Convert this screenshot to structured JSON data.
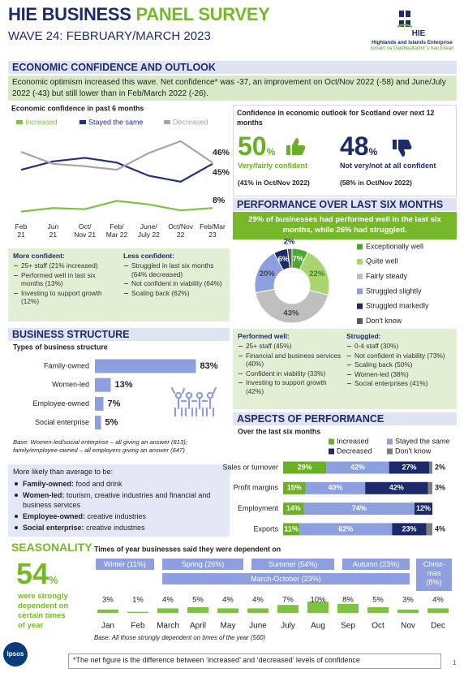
{
  "header": {
    "title_a": "HIE BUSINESS",
    "title_b": "PANEL SURVEY",
    "subtitle": "WAVE 24: FEBRUARY/MARCH 2023",
    "logo": {
      "mark": "HIE",
      "name": "Highlands and Islands Enterprise",
      "gaelic": "Iomairt na Gàidhealtachd 's nan Eilean"
    }
  },
  "economic": {
    "heading": "ECONOMIC CONFIDENCE AND OUTLOOK",
    "intro": "Economic optimism increased this wave. Net confidence* was -37, an improvement on Oct/Nov 2022 (-58) and June/July 2022 (-43) but still lower than in Feb/March 2022 (-26).",
    "outlook": {
      "title": "Confidence in economic outlook for Scotland over next 12 months",
      "confident": {
        "figure": "50",
        "unit": "%",
        "label": "Very/fairly confident",
        "comparison": "(41% in Oct/Nov 2022)"
      },
      "not_confident": {
        "figure": "48",
        "unit": "%",
        "label": "Not very/not at all confident",
        "comparison": "(58% in Oct/Nov 2022)"
      }
    },
    "more_confident": {
      "title": "More confident:",
      "items": [
        "25+ staff (21% increased)",
        "Performed well in last six months (13%)",
        "Investing to support growth (12%)"
      ]
    },
    "less_confident": {
      "title": "Less confident:",
      "items": [
        "Struggled in last six months (64% decreased)",
        "Not confident in viability (64%)",
        "Scaling back (62%)"
      ]
    }
  },
  "performance": {
    "heading": "PERFORMANCE OVER LAST SIX MONTHS",
    "banner": "29% of businesses had performed well in the last six months, while 26% had struggled.",
    "performed_well": {
      "title": "Performed well:",
      "items": [
        "25+ staff (45%)",
        "Financial and business services (40%)",
        "Confident in viability (33%)",
        "Investing to support growth (42%)"
      ]
    },
    "struggled": {
      "title": "Struggled:",
      "items": [
        "0-4 staff (30%)",
        "Not confident in viability (73%)",
        "Scaling back (50%)",
        "Women-led (38%)",
        "Social enterprises (41%)"
      ]
    }
  },
  "structure": {
    "heading": "BUSINESS STRUCTURE",
    "more_likely": {
      "title": "More likely than average to be:",
      "items": [
        {
          "label": "Family-owned:",
          "text": " food and drink"
        },
        {
          "label": "Women-led:",
          "text": " tourism, creative industries and financial and business services"
        },
        {
          "label": "Employee-owned:",
          "text": " creative industries"
        },
        {
          "label": "Social enterprise:",
          "text": " creative industries"
        }
      ]
    }
  },
  "aspects": {
    "heading": "ASPECTS OF PERFORMANCE"
  },
  "seasonality": {
    "heading": "SEASONALITY",
    "headline": {
      "figure": "54",
      "unit": "%",
      "text": "were strongly dependent on certain times of year"
    },
    "seasons": [
      "Winter (11%)",
      "Spring (26%)",
      "Summer (54%)",
      "Autumn (23%)",
      "Christ-\nmas\n(8%)"
    ],
    "span": "March-October (23%)"
  },
  "footer": {
    "logo": "Ipsos",
    "note": "*The net figure is the difference between ‘increased’ and ‘decreased’ levels of confidence",
    "page": "1"
  },
  "chart_data": [
    {
      "type": "line",
      "title": "Economic confidence in past 6 months",
      "categories": [
        "Feb\n21",
        "Jun\n21",
        "Oct/\nNov 21",
        "Feb/\nMar 22",
        "June/\nJuly 22",
        "Oct/Nov\n22",
        "Feb/Mar\n23"
      ],
      "ylim": [
        0,
        70
      ],
      "series": [
        {
          "name": "Increased",
          "color": "#7dc242",
          "values": [
            5,
            8,
            7,
            14,
            11,
            6,
            8
          ],
          "value_labels": [
            null,
            null,
            null,
            null,
            null,
            null,
            "8%"
          ]
        },
        {
          "name": "Stayed the same",
          "color": "#1f2f86",
          "values": [
            40,
            47,
            50,
            46,
            35,
            30,
            45
          ],
          "value_labels": [
            null,
            null,
            null,
            null,
            null,
            null,
            "45%"
          ]
        },
        {
          "name": "Decreased",
          "color": "#a6a6a6",
          "values": [
            55,
            45,
            43,
            40,
            54,
            64,
            46
          ],
          "value_labels": [
            null,
            null,
            null,
            null,
            null,
            null,
            "46%"
          ]
        }
      ]
    },
    {
      "type": "pie",
      "donut": true,
      "categories": [
        "Exceptionally well",
        "Quite well",
        "Fairly steady",
        "Struggled slightly",
        "Struggled markedly",
        "Don't know"
      ],
      "values": [
        7,
        22,
        43,
        20,
        6,
        2
      ],
      "value_labels": [
        "7%",
        "22%",
        "43%",
        "20%",
        "6%",
        "2%"
      ],
      "colors": [
        "#4ea72e",
        "#a9d46f",
        "#bfbfbf",
        "#8e9fe0",
        "#1c2a6b",
        "#595959"
      ]
    },
    {
      "type": "bar",
      "orientation": "horizontal",
      "title": "Types of business structure",
      "categories": [
        "Family-owned",
        "Women-led",
        "Employee-owned",
        "Social enterprise"
      ],
      "values": [
        83,
        13,
        7,
        5
      ],
      "value_labels": [
        "83%",
        "13%",
        "7%",
        "5%"
      ],
      "color": "#8e9fe0",
      "xlim": [
        0,
        100
      ],
      "note": "Base: Women-led/social enterprise – all giving an answer (813); family/employee-owned – all employers giving an answer (647)"
    },
    {
      "type": "bar",
      "orientation": "horizontal",
      "stacked": true,
      "title": "Over the last six months",
      "categories": [
        "Sales or turnover",
        "Profit margins",
        "Employment",
        "Exports"
      ],
      "xlim": [
        0,
        100
      ],
      "series": [
        {
          "name": "Increased",
          "color": "#6ab023",
          "values": [
            29,
            15,
            14,
            11
          ],
          "value_labels": [
            "29%",
            "15%",
            "14%",
            "11%"
          ]
        },
        {
          "name": "Stayed the same",
          "color": "#8e9fe0",
          "values": [
            42,
            40,
            74,
            62
          ],
          "value_labels": [
            "42%",
            "40%",
            "74%",
            "62%"
          ]
        },
        {
          "name": "Decreased",
          "color": "#1c2a6b",
          "values": [
            27,
            42,
            12,
            23
          ],
          "value_labels": [
            "27%",
            "42%",
            "12%",
            "23%"
          ]
        },
        {
          "name": "Don't know",
          "color": "#7f7f7f",
          "values": [
            2,
            3,
            null,
            4
          ],
          "value_labels": [
            "2%",
            "3%",
            null,
            "4%"
          ]
        }
      ]
    },
    {
      "type": "bar",
      "title": "Times of year businesses said they were dependent on",
      "categories": [
        "Jan",
        "Feb",
        "March",
        "April",
        "May",
        "June",
        "July",
        "Aug",
        "Sep",
        "Oct",
        "Nov",
        "Dec"
      ],
      "values": [
        3,
        1,
        4,
        5,
        4,
        4,
        7,
        10,
        8,
        5,
        3,
        4
      ],
      "value_labels": [
        "3%",
        "1%",
        "4%",
        "5%",
        "4%",
        "4%",
        "7%",
        "10%",
        "8%",
        "5%",
        "3%",
        "4%"
      ],
      "color": "#7dc242",
      "ylim": [
        0,
        10
      ],
      "note": "Base: All those strongly dependent on times of the year (560)"
    }
  ]
}
